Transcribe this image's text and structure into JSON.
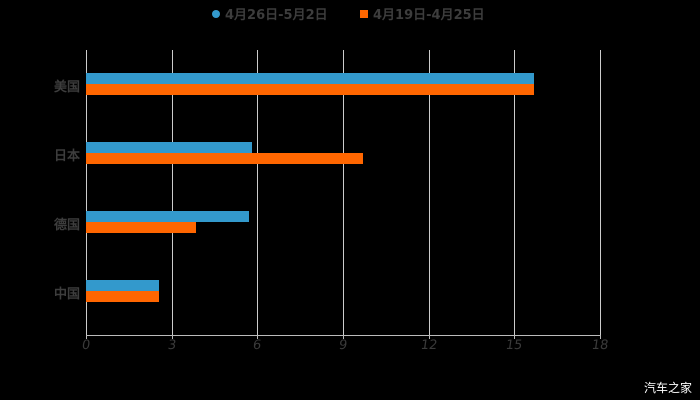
{
  "chart_data": {
    "type": "bar",
    "orientation": "horizontal",
    "title": "",
    "xlabel": "",
    "ylabel": "",
    "categories": [
      "美国",
      "日本",
      "德国",
      "中国"
    ],
    "series": [
      {
        "name": "4月26日-5月2日",
        "color": "#3399cc",
        "values": [
          15.7,
          5.8,
          5.7,
          2.55
        ]
      },
      {
        "name": "4月19日-4月25日",
        "color": "#ff6600",
        "values": [
          15.7,
          9.7,
          3.85,
          2.55
        ]
      }
    ],
    "xlim": [
      0,
      18
    ],
    "xticks": [
      0,
      3,
      6,
      9,
      12,
      15,
      18
    ],
    "xtick_labels": [
      "0",
      "3",
      "6",
      "9",
      "12",
      "15",
      "18"
    ],
    "grid": "vertical",
    "legend_position": "top"
  },
  "legend": {
    "series1_label": "4月26日-5月2日",
    "series2_label": "4月19日-4月25日"
  },
  "watermark": "汽车之家"
}
